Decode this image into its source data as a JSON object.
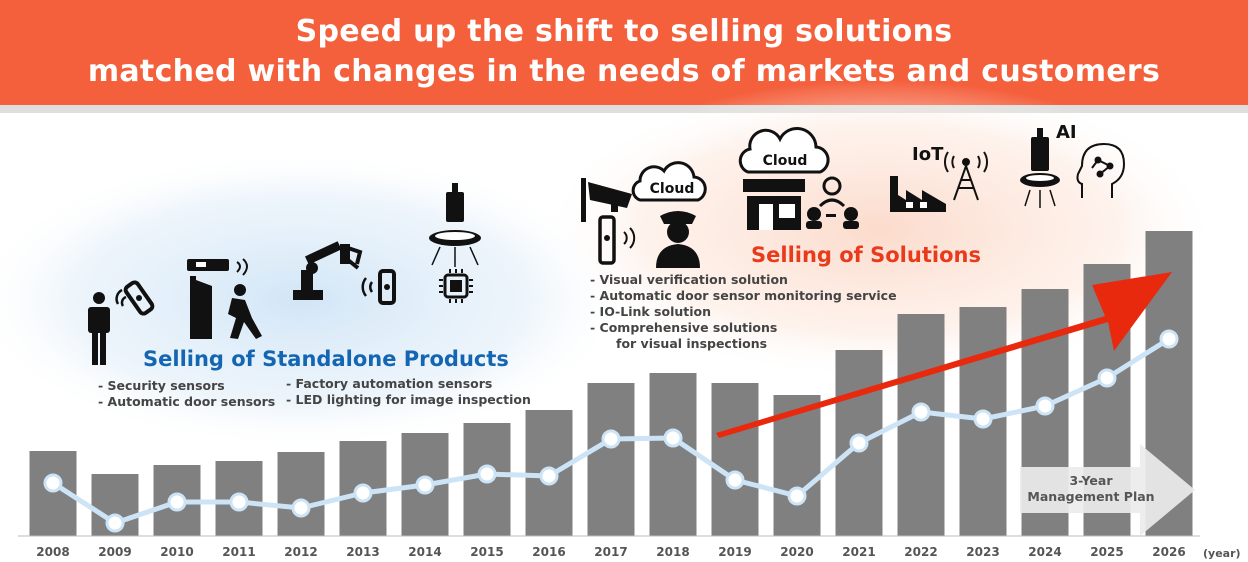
{
  "header": {
    "line1": "Speed up the shift to selling solutions",
    "line2": "matched with changes in the needs of markets and customers"
  },
  "standalone": {
    "title": "Selling of Standalone Products",
    "bullets_left": [
      "- Security sensors",
      "- Automatic door sensors"
    ],
    "bullets_right": [
      "- Factory automation sensors",
      "- LED lighting for image inspection"
    ]
  },
  "solutions": {
    "title": "Selling of Solutions",
    "bullets": [
      "- Visual verification solution",
      "- Automatic door sensor monitoring service",
      "- IO-Link solution",
      "- Comprehensive solutions",
      "for visual inspections"
    ]
  },
  "icons": {
    "cloud_label": "Cloud",
    "iot_label": "IoT",
    "ai_label": "AI",
    "names": [
      "person-icon",
      "sensor-icon",
      "door-sensor-icon",
      "walking-person-icon",
      "robot-arm-icon",
      "fa-sensor-icon",
      "ring-light-icon",
      "chip-icon",
      "camera-icon",
      "cloud-icon",
      "guard-icon",
      "store-icon",
      "users-icon",
      "factory-icon",
      "antenna-icon",
      "ai-head-icon"
    ]
  },
  "plan_label": [
    "3-Year",
    "Management Plan"
  ],
  "colors": {
    "header": "#f45f3c",
    "bar": "#808080",
    "line": "#cde4f7",
    "arrow": "#e8290e",
    "standalone_title": "#1466b2",
    "solutions_title": "#ea3a1c"
  },
  "chart_data": {
    "type": "bar",
    "categories": [
      "2008",
      "2009",
      "2010",
      "2011",
      "2012",
      "2013",
      "2014",
      "2015",
      "2016",
      "2017",
      "2018",
      "2019",
      "2020",
      "2021",
      "2022",
      "2023",
      "2024",
      "2025",
      "2026"
    ],
    "series": [
      {
        "type": "bar",
        "values": [
          85,
          62,
          71,
          75,
          84,
          95,
          103,
          113,
          126,
          153,
          163,
          153,
          141,
          186,
          222,
          229,
          247,
          272,
          305
        ]
      },
      {
        "type": "line",
        "values": [
          53,
          13,
          34,
          34,
          28,
          43,
          51,
          62,
          60,
          97,
          98,
          56,
          40,
          93,
          124,
          117,
          130,
          158,
          197
        ]
      }
    ],
    "x_unit": "(year)",
    "y_axis": "none",
    "grid": false,
    "annotations": [
      "3-Year Management Plan"
    ]
  }
}
